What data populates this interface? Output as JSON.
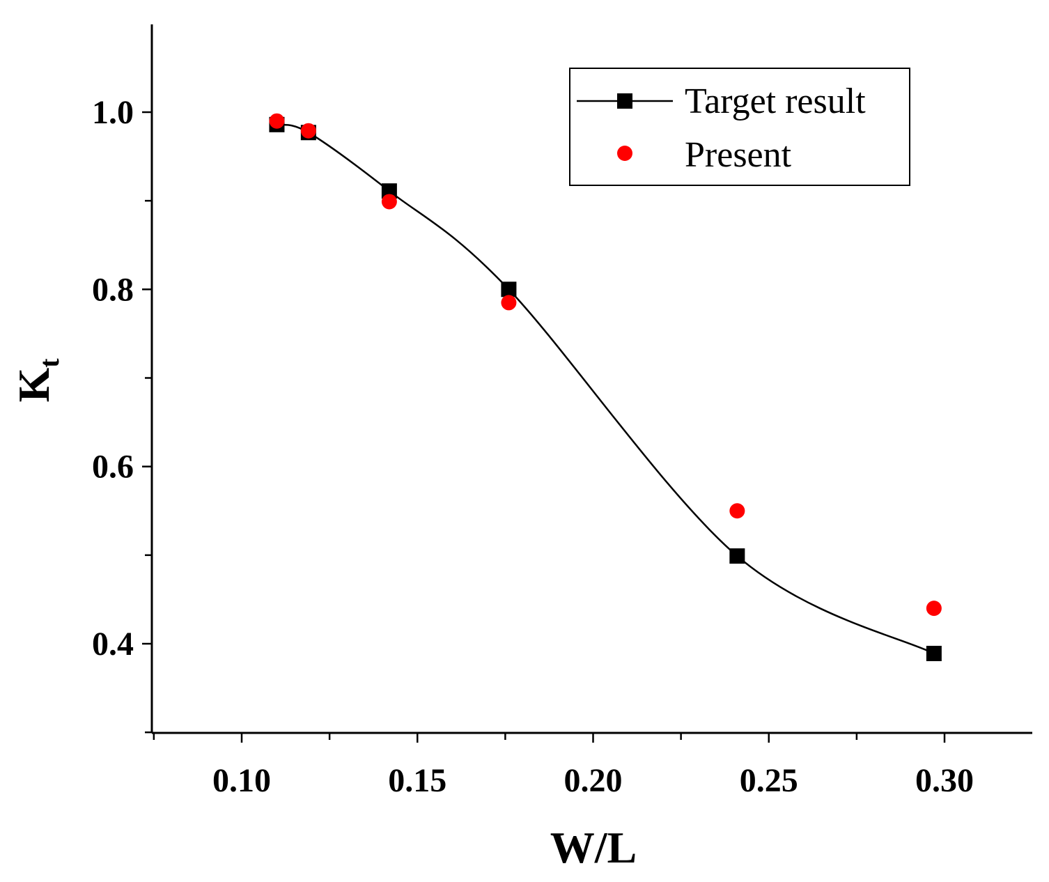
{
  "chart_data": {
    "type": "line",
    "title": "",
    "xlabel": "W/L",
    "ylabel_main": "K",
    "ylabel_sub": "t",
    "xlim": [
      0.075,
      0.325
    ],
    "ylim": [
      0.3,
      1.1
    ],
    "x_ticks": [
      0.1,
      0.15,
      0.2,
      0.25,
      0.3
    ],
    "x_tick_labels": [
      "0.10",
      "0.15",
      "0.20",
      "0.25",
      "0.30"
    ],
    "y_ticks": [
      0.4,
      0.6,
      0.8,
      1.0
    ],
    "y_tick_labels": [
      "0.4",
      "0.6",
      "0.8",
      "1.0"
    ],
    "grid": false,
    "legend_position": "top-right",
    "series": [
      {
        "name": "Target result",
        "style": "line-with-square-markers",
        "color": "#000000",
        "x": [
          0.11,
          0.119,
          0.142,
          0.176,
          0.241,
          0.297
        ],
        "y": [
          0.986,
          0.977,
          0.911,
          0.8,
          0.499,
          0.389
        ]
      },
      {
        "name": "Present",
        "style": "circle-markers",
        "color": "#ff0000",
        "x": [
          0.11,
          0.119,
          0.142,
          0.176,
          0.241,
          0.297
        ],
        "y": [
          0.99,
          0.979,
          0.899,
          0.785,
          0.55,
          0.44
        ]
      }
    ]
  }
}
